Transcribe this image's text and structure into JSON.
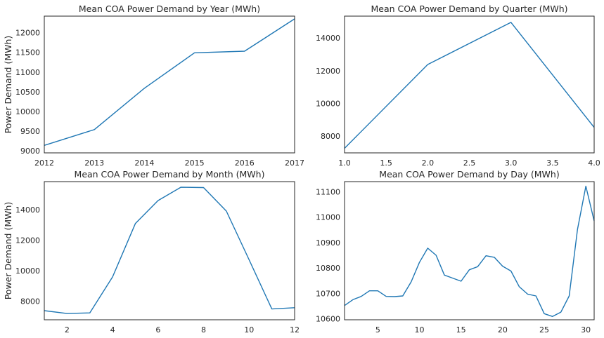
{
  "figure": {
    "line_color": "#1f77b4"
  },
  "chart_data": [
    {
      "type": "line",
      "title": "Mean COA Power Demand by Year (MWh)",
      "xlabel": "",
      "ylabel": "Power Demand (MWh)",
      "x": [
        2012,
        2013,
        2014,
        2015,
        2016,
        2017
      ],
      "y": [
        9140,
        9540,
        10590,
        11490,
        11530,
        12350
      ],
      "xlim": [
        2012,
        2017
      ],
      "ylim": [
        8950,
        12420
      ],
      "xticks": [
        2012,
        2013,
        2014,
        2015,
        2016,
        2017
      ],
      "xtick_labels": [
        "2012",
        "2013",
        "2014",
        "2015",
        "2016",
        "2017"
      ],
      "yticks": [
        9000,
        9500,
        10000,
        10500,
        11000,
        11500,
        12000
      ],
      "ytick_labels": [
        "9000",
        "9500",
        "10000",
        "10500",
        "11000",
        "11500",
        "12000"
      ],
      "grid": false
    },
    {
      "type": "line",
      "title": "Mean COA Power Demand by Quarter (MWh)",
      "xlabel": "",
      "ylabel": "",
      "x": [
        1,
        2,
        3,
        4
      ],
      "y": [
        7250,
        12380,
        14960,
        8530
      ],
      "xlim": [
        1.0,
        4.0
      ],
      "ylim": [
        6970,
        15340
      ],
      "xticks": [
        1.0,
        1.5,
        2.0,
        2.5,
        3.0,
        3.5,
        4.0
      ],
      "xtick_labels": [
        "1.0",
        "1.5",
        "2.0",
        "2.5",
        "3.0",
        "3.5",
        "4.0"
      ],
      "yticks": [
        8000,
        10000,
        12000,
        14000
      ],
      "ytick_labels": [
        "8000",
        "10000",
        "12000",
        "14000"
      ],
      "grid": false
    },
    {
      "type": "line",
      "title": "Mean COA Power Demand by Month (MWh)",
      "xlabel": "",
      "ylabel": "Power Demand (MWh)",
      "x": [
        1,
        2,
        3,
        4,
        5,
        6,
        7,
        8,
        9,
        10,
        11,
        12
      ],
      "y": [
        7370,
        7180,
        7220,
        9580,
        13080,
        14590,
        15460,
        15440,
        13900,
        10700,
        7480,
        7560
      ],
      "xlim": [
        1,
        12
      ],
      "ylim": [
        6770,
        15830
      ],
      "xticks": [
        2,
        4,
        6,
        8,
        10,
        12
      ],
      "xtick_labels": [
        "2",
        "4",
        "6",
        "8",
        "10",
        "12"
      ],
      "yticks": [
        8000,
        10000,
        12000,
        14000
      ],
      "ytick_labels": [
        "8000",
        "10000",
        "12000",
        "14000"
      ],
      "grid": false
    },
    {
      "type": "line",
      "title": "Mean COA Power Demand by Day (MWh)",
      "xlabel": "",
      "ylabel": "",
      "x": [
        1,
        2,
        3,
        4,
        5,
        6,
        7,
        8,
        9,
        10,
        11,
        12,
        13,
        14,
        15,
        16,
        17,
        18,
        19,
        20,
        21,
        22,
        23,
        24,
        25,
        26,
        27,
        28,
        29,
        30,
        31
      ],
      "y": [
        10652,
        10675,
        10688,
        10710,
        10710,
        10688,
        10687,
        10690,
        10745,
        10822,
        10878,
        10850,
        10772,
        10760,
        10748,
        10793,
        10805,
        10848,
        10842,
        10807,
        10788,
        10726,
        10697,
        10690,
        10620,
        10609,
        10626,
        10690,
        10952,
        11122,
        10985
      ],
      "xlim": [
        1,
        31
      ],
      "ylim": [
        10596,
        11140
      ],
      "xticks": [
        5,
        10,
        15,
        20,
        25,
        30
      ],
      "xtick_labels": [
        "5",
        "10",
        "15",
        "20",
        "25",
        "30"
      ],
      "yticks": [
        10600,
        10700,
        10800,
        10900,
        11000,
        11100
      ],
      "ytick_labels": [
        "10600",
        "10700",
        "10800",
        "10900",
        "11000",
        "11100"
      ],
      "grid": false
    }
  ]
}
